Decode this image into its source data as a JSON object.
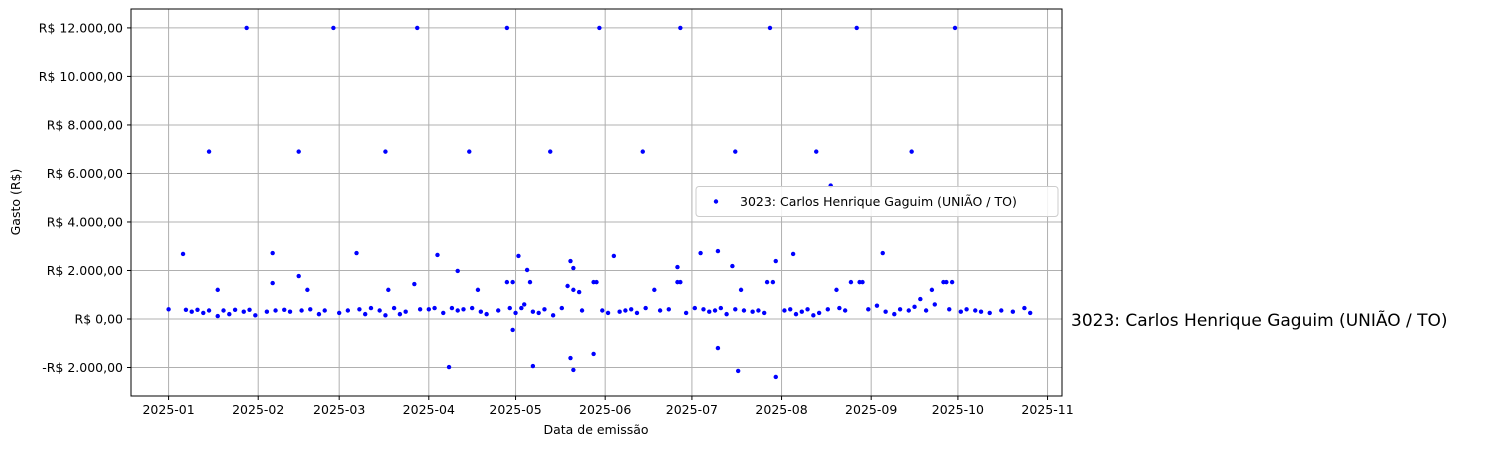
{
  "chart_data": {
    "type": "scatter",
    "xlabel": "Data de emissão",
    "ylabel": "Gasto (R$)",
    "annotation": "3023: Carlos Henrique Gaguim (UNIÃO / TO)",
    "legend": "center right",
    "grid": true,
    "xlim": [
      -13,
      309
    ],
    "ylim": [
      -3175,
      12780
    ],
    "xticks": [
      {
        "value": 0,
        "label": "2025-01"
      },
      {
        "value": 31,
        "label": "2025-02"
      },
      {
        "value": 59,
        "label": "2025-03"
      },
      {
        "value": 90,
        "label": "2025-04"
      },
      {
        "value": 120,
        "label": "2025-05"
      },
      {
        "value": 151,
        "label": "2025-06"
      },
      {
        "value": 181,
        "label": "2025-07"
      },
      {
        "value": 212,
        "label": "2025-08"
      },
      {
        "value": 243,
        "label": "2025-09"
      },
      {
        "value": 273,
        "label": "2025-10"
      },
      {
        "value": 304,
        "label": "2025-11"
      }
    ],
    "yticks": [
      {
        "value": -2000,
        "label": "-R$ 2.000,00"
      },
      {
        "value": 0,
        "label": "R$ 0,00"
      },
      {
        "value": 2000,
        "label": "R$ 2.000,00"
      },
      {
        "value": 4000,
        "label": "R$ 4.000,00"
      },
      {
        "value": 6000,
        "label": "R$ 6.000,00"
      },
      {
        "value": 8000,
        "label": "R$ 8.000,00"
      },
      {
        "value": 10000,
        "label": "R$ 10.000,00"
      },
      {
        "value": 12000,
        "label": "R$ 12.000,00"
      }
    ],
    "series": [
      {
        "name": "3023: Carlos Henrique Gaguim (UNIÃO / TO)",
        "color": "#0000ff",
        "x": [
          27,
          57,
          86,
          117,
          149,
          177,
          208,
          238,
          272,
          14,
          45,
          75,
          104,
          132,
          164,
          196,
          224,
          257,
          229,
          5,
          36,
          65,
          93,
          121,
          154,
          184,
          190,
          216,
          247,
          100,
          124,
          139,
          140,
          176,
          195,
          210,
          17,
          36,
          45,
          48,
          76,
          85,
          107,
          117,
          119,
          125,
          138,
          140,
          142,
          147,
          148,
          168,
          176,
          177,
          198,
          207,
          209,
          231,
          236,
          239,
          240,
          264,
          268,
          269,
          271,
          260,
          97,
          119,
          126,
          139,
          140,
          147,
          190,
          197,
          210,
          0,
          6,
          8,
          10,
          12,
          14,
          17,
          19,
          21,
          23,
          26,
          28,
          30,
          34,
          37,
          40,
          42,
          46,
          49,
          52,
          54,
          59,
          62,
          66,
          68,
          70,
          73,
          75,
          78,
          80,
          82,
          87,
          90,
          92,
          95,
          98,
          100,
          102,
          105,
          108,
          110,
          114,
          118,
          120,
          122,
          123,
          126,
          128,
          130,
          133,
          136,
          143,
          150,
          152,
          156,
          158,
          160,
          162,
          165,
          170,
          173,
          179,
          182,
          185,
          187,
          189,
          191,
          193,
          196,
          199,
          202,
          204,
          206,
          213,
          215,
          217,
          219,
          221,
          223,
          225,
          228,
          232,
          234,
          242,
          245,
          248,
          251,
          253,
          256,
          258,
          262,
          265,
          270,
          274,
          276,
          279,
          281,
          284,
          288,
          292,
          296,
          298
        ],
        "values": [
          12000,
          12000,
          12000,
          12000,
          12000,
          12000,
          12000,
          12000,
          12000,
          6900,
          6900,
          6900,
          6900,
          6900,
          6900,
          6900,
          6900,
          6900,
          5500,
          2680,
          2720,
          2720,
          2640,
          2600,
          2600,
          2720,
          2800,
          2680,
          2720,
          1980,
          2020,
          2390,
          2100,
          2140,
          2180,
          2390,
          1200,
          1480,
          1770,
          1200,
          1200,
          1440,
          1200,
          1520,
          1520,
          1520,
          1360,
          1200,
          1110,
          1520,
          1520,
          1200,
          1520,
          1520,
          1200,
          1520,
          1520,
          1200,
          1520,
          1520,
          1520,
          1200,
          1520,
          1520,
          1520,
          820,
          -1980,
          -450,
          -1940,
          -1610,
          -2100,
          -1440,
          -1200,
          -2140,
          -2390,
          400,
          380,
          300,
          380,
          250,
          350,
          120,
          350,
          200,
          380,
          300,
          380,
          150,
          300,
          350,
          380,
          300,
          350,
          400,
          200,
          350,
          250,
          350,
          400,
          200,
          450,
          350,
          150,
          450,
          200,
          300,
          400,
          400,
          450,
          250,
          450,
          350,
          400,
          450,
          300,
          200,
          350,
          450,
          250,
          450,
          600,
          300,
          250,
          400,
          150,
          450,
          350,
          350,
          250,
          300,
          350,
          400,
          250,
          450,
          350,
          400,
          250,
          450,
          400,
          300,
          350,
          450,
          200,
          400,
          350,
          300,
          350,
          250,
          350,
          400,
          200,
          300,
          400,
          150,
          250,
          400,
          450,
          350,
          400,
          550,
          300,
          200,
          400,
          350,
          500,
          350,
          600,
          400,
          300,
          400,
          350,
          300,
          250,
          350,
          300,
          450,
          250
        ]
      }
    ]
  }
}
